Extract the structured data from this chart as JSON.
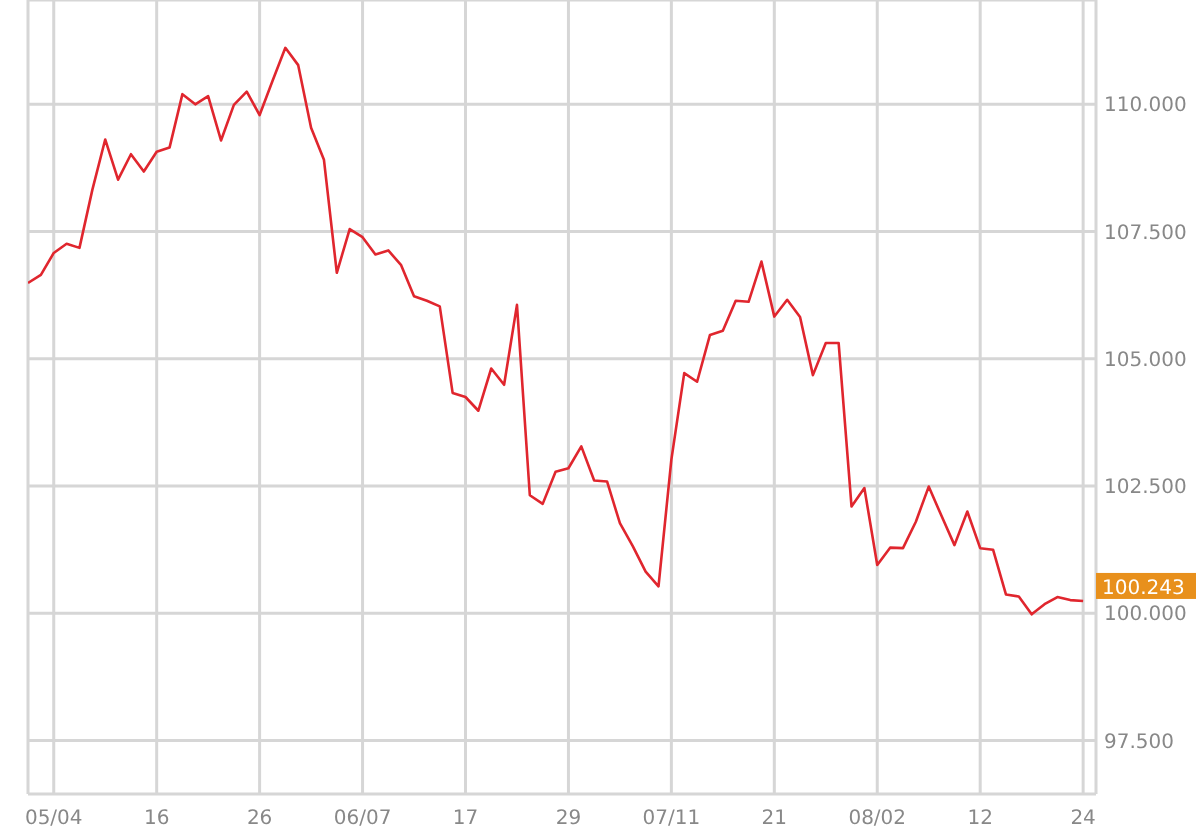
{
  "chart_data": {
    "type": "line",
    "categories": [
      null,
      null,
      "05/04",
      null,
      null,
      null,
      null,
      null,
      null,
      null,
      "16",
      null,
      null,
      null,
      null,
      null,
      null,
      null,
      "26",
      null,
      null,
      null,
      null,
      null,
      null,
      null,
      "06/07",
      null,
      null,
      null,
      null,
      null,
      null,
      null,
      "17",
      null,
      null,
      null,
      null,
      null,
      null,
      null,
      "29",
      null,
      null,
      null,
      null,
      null,
      null,
      null,
      "07/11",
      null,
      null,
      null,
      null,
      null,
      null,
      null,
      "21",
      null,
      null,
      null,
      null,
      null,
      null,
      null,
      "08/02",
      null,
      null,
      null,
      null,
      null,
      null,
      null,
      "12",
      null,
      null,
      null,
      null,
      null,
      null,
      null,
      "24"
    ],
    "series": [
      {
        "color": "#e0262e",
        "values": [
          106.49,
          106.65,
          107.08,
          107.26,
          107.18,
          108.32,
          109.31,
          108.52,
          109.02,
          108.68,
          109.07,
          109.15,
          110.2,
          110.0,
          110.16,
          109.29,
          109.99,
          110.25,
          109.79,
          110.46,
          111.11,
          110.77,
          109.54,
          108.91,
          106.69,
          107.55,
          107.39,
          107.05,
          107.13,
          106.84,
          106.23,
          106.14,
          106.03,
          104.33,
          104.25,
          103.98,
          104.81,
          104.49,
          106.06,
          102.32,
          102.15,
          102.78,
          102.85,
          103.28,
          102.61,
          102.59,
          101.77,
          101.32,
          100.82,
          100.53,
          103.02,
          104.72,
          104.55,
          105.47,
          105.55,
          106.14,
          106.12,
          106.91,
          105.83,
          106.16,
          105.82,
          104.68,
          105.31,
          105.31,
          102.1,
          102.46,
          100.95,
          101.29,
          101.28,
          101.8,
          102.49,
          101.91,
          101.34,
          102.0,
          101.28,
          101.25,
          100.37,
          100.33,
          99.98,
          100.18,
          100.32,
          100.26,
          100.243
        ]
      }
    ],
    "ylim": [
      96.45,
      112.05
    ],
    "yticks": [
      {
        "value": 97.5,
        "label": "97.500"
      },
      {
        "value": 100,
        "label": "100.000"
      },
      {
        "value": 102.5,
        "label": "102.500"
      },
      {
        "value": 105,
        "label": "105.000"
      },
      {
        "value": 107.5,
        "label": "107.500"
      },
      {
        "value": 110,
        "label": "110.000"
      }
    ],
    "annotations": [
      {
        "text": "100.243",
        "x": "24",
        "y": 100.243
      }
    ],
    "grid": true,
    "marker": "none",
    "line_style": "solid",
    "legend": false
  }
}
